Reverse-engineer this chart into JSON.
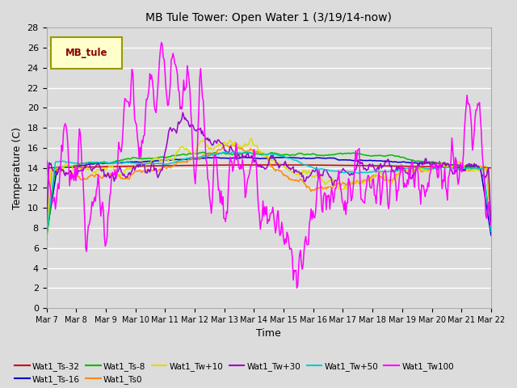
{
  "title": "MB Tule Tower: Open Water 1 (3/19/14-now)",
  "xlabel": "Time",
  "ylabel": "Temperature (C)",
  "ylim": [
    0,
    28
  ],
  "yticks": [
    0,
    2,
    4,
    6,
    8,
    10,
    12,
    14,
    16,
    18,
    20,
    22,
    24,
    26,
    28
  ],
  "x_labels": [
    "Mar 7",
    "Mar 8",
    "Mar 9",
    "Mar 10",
    "Mar 11",
    "Mar 12",
    "Mar 13",
    "Mar 14",
    "Mar 15",
    "Mar 16",
    "Mar 17",
    "Mar 18",
    "Mar 19",
    "Mar 20",
    "Mar 21",
    "Mar 22"
  ],
  "n_points": 500,
  "bg_color": "#dcdcdc",
  "series_colors": {
    "Wat1_Ts-32": "#cc0000",
    "Wat1_Ts-16": "#0000cc",
    "Wat1_Ts-8": "#00bb00",
    "Wat1_Ts0": "#ff8800",
    "Wat1_Tw+10": "#dddd00",
    "Wat1_Tw+30": "#9900cc",
    "Wat1_Tw+50": "#00cccc",
    "Wat1_Tw100": "#ff00ff"
  },
  "legend_box_color": "#ffffcc",
  "legend_box_edge": "#999900",
  "legend_text": "MB_tule",
  "legend_text_color": "#880000",
  "grid_color": "#ffffff",
  "spine_color": "#aaaaaa"
}
